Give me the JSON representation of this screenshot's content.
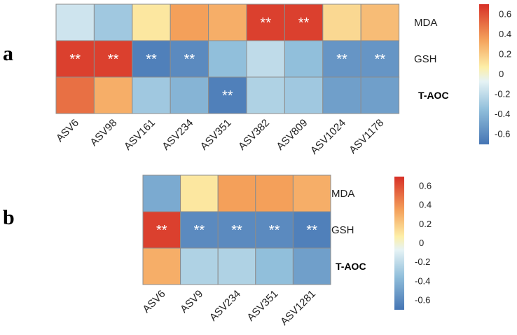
{
  "chart_data": [
    {
      "panel": "a",
      "type": "heatmap",
      "rows": [
        "MDA",
        "GSH",
        "T-AOC"
      ],
      "columns": [
        "ASV6",
        "ASV98",
        "ASV161",
        "ASV234",
        "ASV351",
        "ASV382",
        "ASV809",
        "ASV1024",
        "ASV1178"
      ],
      "values": [
        [
          -0.15,
          -0.3,
          0.1,
          0.35,
          0.3,
          0.65,
          0.65,
          0.15,
          0.25
        ],
        [
          0.65,
          0.65,
          -0.65,
          -0.6,
          -0.35,
          -0.2,
          -0.35,
          -0.55,
          -0.55
        ],
        [
          0.5,
          0.3,
          -0.3,
          -0.4,
          -0.65,
          -0.25,
          -0.3,
          -0.5,
          -0.5
        ]
      ],
      "significance": [
        [
          "",
          "",
          "",
          "",
          "",
          "**",
          "**",
          "",
          ""
        ],
        [
          "**",
          "**",
          "**",
          "**",
          "",
          "",
          "",
          "**",
          "**"
        ],
        [
          "",
          "",
          "",
          "",
          "**",
          "",
          "",
          "",
          ""
        ]
      ],
      "colorbar": {
        "ticks": [
          "0.6",
          "0.4",
          "0.2",
          "0",
          "-0.2",
          "-0.4",
          "-0.6"
        ],
        "range": [
          -0.7,
          0.7
        ]
      }
    },
    {
      "panel": "b",
      "type": "heatmap",
      "rows": [
        "MDA",
        "GSH",
        "T-AOC"
      ],
      "columns": [
        "ASV6",
        "ASV9",
        "ASV234",
        "ASV351",
        "ASV1281"
      ],
      "values": [
        [
          -0.45,
          0.1,
          0.35,
          0.35,
          0.3
        ],
        [
          0.65,
          -0.6,
          -0.6,
          -0.6,
          -0.65
        ],
        [
          0.3,
          -0.25,
          -0.25,
          -0.35,
          -0.5
        ]
      ],
      "significance": [
        [
          "",
          "",
          "",
          "",
          ""
        ],
        [
          "**",
          "**",
          "**",
          "**",
          "**"
        ],
        [
          "",
          "",
          "",
          "",
          ""
        ]
      ],
      "colorbar": {
        "ticks": [
          "0.6",
          "0.4",
          "0.2",
          "0",
          "-0.2",
          "-0.4",
          "-0.6"
        ],
        "range": [
          -0.7,
          0.7
        ]
      }
    }
  ]
}
